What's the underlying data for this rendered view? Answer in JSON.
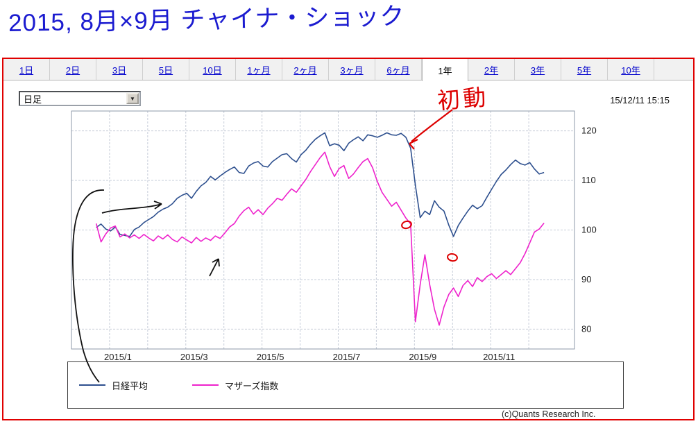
{
  "handwritten_title": {
    "text": "2015, 8月×9月 チャイナ・ショック",
    "color": "#1b1bd0"
  },
  "toolbar": {
    "tabs": [
      {
        "label": "1日",
        "active": false
      },
      {
        "label": "2日",
        "active": false
      },
      {
        "label": "3日",
        "active": false
      },
      {
        "label": "5日",
        "active": false
      },
      {
        "label": "10日",
        "active": false
      },
      {
        "label": "1ヶ月",
        "active": false
      },
      {
        "label": "2ヶ月",
        "active": false
      },
      {
        "label": "3ヶ月",
        "active": false
      },
      {
        "label": "6ヶ月",
        "active": false
      },
      {
        "label": "1年",
        "active": true
      },
      {
        "label": "2年",
        "active": false
      },
      {
        "label": "3年",
        "active": false
      },
      {
        "label": "5年",
        "active": false
      },
      {
        "label": "10年",
        "active": false
      }
    ],
    "interval_select": {
      "value": "日足"
    },
    "timestamp": "15/12/11 15:15"
  },
  "annotations": {
    "initial_move_label": "初動",
    "red_color": "#dd0000",
    "ink_color": "#111111"
  },
  "chart_data": {
    "type": "line",
    "title": "",
    "xlabel": "",
    "ylabel": "",
    "x_unit": "months from 2014/12 (plot left edge)",
    "xlim": [
      0,
      13.2
    ],
    "ylim": [
      76,
      124
    ],
    "y_ticks": [
      80,
      90,
      100,
      110,
      120
    ],
    "x_grid_months": [
      1,
      2,
      3,
      4,
      5,
      6,
      7,
      8,
      9,
      10,
      11,
      12
    ],
    "x_tick_labels": [
      {
        "month": 1,
        "label": "2015/1"
      },
      {
        "month": 3,
        "label": "2015/3"
      },
      {
        "month": 5,
        "label": "2015/5"
      },
      {
        "month": 7,
        "label": "2015/7"
      },
      {
        "month": 9,
        "label": "2015/9"
      },
      {
        "month": 11,
        "label": "2015/11"
      }
    ],
    "grid": true,
    "legend_position": "bottom",
    "x_start": 0.65,
    "x_step": 0.125,
    "series": [
      {
        "key": "nikkei",
        "name": "日経平均",
        "color": "#2d4f8e",
        "values": [
          100.5,
          101.2,
          100.2,
          99.8,
          100.6,
          99.1,
          98.9,
          98.7,
          100.1,
          100.6,
          101.5,
          102.1,
          102.7,
          103.6,
          104.2,
          104.6,
          105.3,
          106.4,
          107.0,
          107.4,
          106.4,
          107.8,
          108.9,
          109.6,
          110.8,
          110.1,
          110.9,
          111.6,
          112.2,
          112.7,
          111.6,
          111.4,
          112.9,
          113.5,
          113.8,
          112.9,
          112.7,
          113.8,
          114.5,
          115.2,
          115.4,
          114.4,
          113.7,
          115.2,
          116.1,
          117.3,
          118.3,
          119.0,
          119.6,
          117.0,
          117.4,
          117.1,
          116.0,
          117.5,
          118.2,
          118.8,
          118.0,
          119.2,
          119.0,
          118.7,
          119.1,
          119.6,
          119.2,
          119.1,
          119.5,
          118.7,
          116.5,
          109.0,
          102.5,
          103.8,
          103.1,
          105.9,
          104.6,
          103.8,
          101.0,
          98.7,
          100.9,
          102.4,
          103.8,
          105.0,
          104.3,
          104.9,
          106.6,
          108.2,
          109.8,
          111.2,
          112.1,
          113.2,
          114.1,
          113.4,
          113.1,
          113.6,
          112.3,
          111.3,
          111.6
        ]
      },
      {
        "key": "mothers",
        "name": "マザーズ指数",
        "color": "#ee22cc",
        "values": [
          101.3,
          97.6,
          99.2,
          100.4,
          100.8,
          98.6,
          99.2,
          98.4,
          99.0,
          98.3,
          99.1,
          98.4,
          97.8,
          98.8,
          98.2,
          99.0,
          98.1,
          97.6,
          98.6,
          98.0,
          97.4,
          98.5,
          97.7,
          98.4,
          97.9,
          98.8,
          98.3,
          99.4,
          100.6,
          101.3,
          102.8,
          103.9,
          104.6,
          103.2,
          104.1,
          103.1,
          104.4,
          105.3,
          106.4,
          106.0,
          107.2,
          108.3,
          107.6,
          108.9,
          110.2,
          111.8,
          113.2,
          114.6,
          115.7,
          112.8,
          110.8,
          112.4,
          113.0,
          110.4,
          111.3,
          112.6,
          113.8,
          114.4,
          112.6,
          109.8,
          107.6,
          106.2,
          104.8,
          105.6,
          104.0,
          102.4,
          101.2,
          81.5,
          89.0,
          95.0,
          89.0,
          84.0,
          80.8,
          84.5,
          87.0,
          88.3,
          86.6,
          88.8,
          89.8,
          88.6,
          90.4,
          89.6,
          90.6,
          91.2,
          90.2,
          91.0,
          91.8,
          91.0,
          92.2,
          93.4,
          95.2,
          97.4,
          99.6,
          100.2,
          101.4
        ]
      }
    ]
  },
  "legend": {
    "items": [
      {
        "label": "日経平均",
        "color": "#2d4f8e"
      },
      {
        "label": "マザーズ指数",
        "color": "#ee22cc"
      }
    ]
  },
  "footer": {
    "copyright": "(c)Quants Research Inc."
  }
}
